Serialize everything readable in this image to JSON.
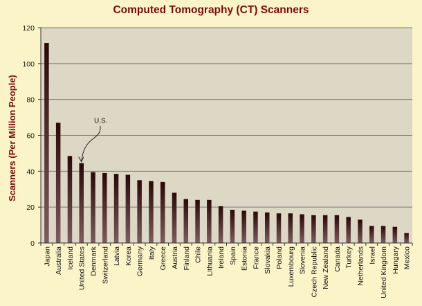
{
  "chart_data": {
    "type": "bar",
    "title": "Computed Tomography (CT) Scanners",
    "ylabel": "Scanners (Per Million People)",
    "xlabel": "",
    "ylim": [
      0,
      120
    ],
    "yticks": [
      0,
      20,
      40,
      60,
      80,
      100,
      120
    ],
    "grid": true,
    "categories": [
      "Japan",
      "Australia",
      "Iceland",
      "United States",
      "Denmark",
      "Switzerland",
      "Latvia",
      "Korea",
      "Germany",
      "Italy",
      "Greece",
      "Austria",
      "Finland",
      "Chile",
      "Lithuania",
      "Ireland",
      "Spain",
      "Estonia",
      "France",
      "Slovakia",
      "Poland",
      "Luxembourg",
      "Slovenia",
      "Czech Republic",
      "New Zealand",
      "Canada",
      "Turkey",
      "Netherlands",
      "Israel",
      "United Kingdom",
      "Hungary",
      "Mexico"
    ],
    "values": [
      111.5,
      67,
      48.5,
      44.5,
      39.5,
      39,
      38.5,
      38,
      35,
      34.5,
      34,
      28,
      24.5,
      24,
      24,
      20.5,
      18.5,
      18,
      17.5,
      17,
      16.5,
      16.5,
      16,
      15.5,
      15.5,
      15.5,
      14.5,
      13,
      9.5,
      9.5,
      9,
      5.5
    ],
    "annotations": [
      {
        "text": "U.S.",
        "category": "United States"
      }
    ],
    "colors": {
      "background": "#fcf4c9",
      "plot_area": "#ddd7c5",
      "bar_top": "#2a0808",
      "bar_bottom": "#7c5c5c",
      "title": "#7a0a0a",
      "gridline": "#7a7a7a"
    }
  }
}
